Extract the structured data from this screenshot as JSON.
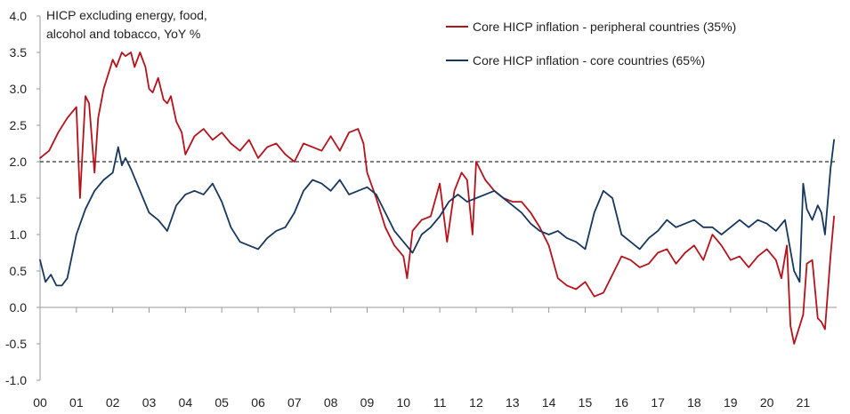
{
  "chart_data": {
    "type": "line",
    "annotation_lines": [
      "HICP excluding energy, food,",
      "alcohol and tobacco, YoY %"
    ],
    "xlabel": "",
    "ylabel": "",
    "ylim": [
      -1.0,
      4.0
    ],
    "yticks": [
      "4.0",
      "3.5",
      "3.0",
      "2.5",
      "2.0",
      "1.5",
      "1.0",
      "0.5",
      "0.0",
      "-0.5",
      "-1.0"
    ],
    "ytick_values": [
      4.0,
      3.5,
      3.0,
      2.5,
      2.0,
      1.5,
      1.0,
      0.5,
      0.0,
      -0.5,
      -1.0
    ],
    "xlim": [
      2000.0,
      2021.92
    ],
    "xticks": [
      "00",
      "01",
      "02",
      "03",
      "04",
      "05",
      "06",
      "07",
      "08",
      "09",
      "10",
      "11",
      "12",
      "13",
      "14",
      "15",
      "16",
      "17",
      "18",
      "19",
      "20",
      "21"
    ],
    "reference_line": {
      "y": 2.0,
      "style": "dashed",
      "color": "#000000"
    },
    "grid": false,
    "legend_position": "top-right",
    "series": [
      {
        "name": "Core HICP inflation - peripheral countries (35%)",
        "color": "#b5121b",
        "x": [
          2000.0,
          2000.25,
          2000.5,
          2000.75,
          2001.0,
          2001.1,
          2001.25,
          2001.35,
          2001.5,
          2001.6,
          2001.75,
          2002.0,
          2002.1,
          2002.25,
          2002.35,
          2002.5,
          2002.6,
          2002.75,
          2002.9,
          2003.0,
          2003.1,
          2003.25,
          2003.4,
          2003.5,
          2003.6,
          2003.75,
          2003.9,
          2004.0,
          2004.25,
          2004.5,
          2004.75,
          2005.0,
          2005.25,
          2005.5,
          2005.75,
          2006.0,
          2006.25,
          2006.5,
          2006.75,
          2007.0,
          2007.25,
          2007.5,
          2007.75,
          2008.0,
          2008.25,
          2008.5,
          2008.75,
          2008.9,
          2009.0,
          2009.25,
          2009.5,
          2009.75,
          2010.0,
          2010.1,
          2010.25,
          2010.5,
          2010.75,
          2011.0,
          2011.2,
          2011.4,
          2011.6,
          2011.75,
          2011.9,
          2012.0,
          2012.25,
          2012.5,
          2012.75,
          2013.0,
          2013.25,
          2013.5,
          2013.75,
          2014.0,
          2014.25,
          2014.5,
          2014.75,
          2015.0,
          2015.25,
          2015.5,
          2015.75,
          2016.0,
          2016.25,
          2016.5,
          2016.75,
          2017.0,
          2017.25,
          2017.5,
          2017.75,
          2018.0,
          2018.25,
          2018.5,
          2018.75,
          2019.0,
          2019.25,
          2019.5,
          2019.75,
          2020.0,
          2020.25,
          2020.4,
          2020.55,
          2020.65,
          2020.75,
          2021.0,
          2021.1,
          2021.25,
          2021.4,
          2021.5,
          2021.6,
          2021.75,
          2021.85
        ],
        "values": [
          2.05,
          2.15,
          2.4,
          2.6,
          2.75,
          1.5,
          2.9,
          2.8,
          1.85,
          2.6,
          3.0,
          3.4,
          3.3,
          3.5,
          3.45,
          3.5,
          3.3,
          3.5,
          3.3,
          3.0,
          2.95,
          3.15,
          2.85,
          2.8,
          2.9,
          2.55,
          2.4,
          2.1,
          2.35,
          2.45,
          2.3,
          2.4,
          2.25,
          2.15,
          2.3,
          2.05,
          2.2,
          2.25,
          2.1,
          2.0,
          2.25,
          2.2,
          2.15,
          2.35,
          2.15,
          2.4,
          2.45,
          2.25,
          1.85,
          1.5,
          1.1,
          0.85,
          0.7,
          0.4,
          1.05,
          1.2,
          1.25,
          1.7,
          0.9,
          1.6,
          1.85,
          1.75,
          1.0,
          2.0,
          1.75,
          1.6,
          1.5,
          1.45,
          1.45,
          1.3,
          1.1,
          0.85,
          0.4,
          0.3,
          0.25,
          0.35,
          0.15,
          0.2,
          0.45,
          0.7,
          0.65,
          0.55,
          0.6,
          0.75,
          0.8,
          0.6,
          0.75,
          0.85,
          0.65,
          1.0,
          0.85,
          0.65,
          0.7,
          0.55,
          0.7,
          0.8,
          0.65,
          0.4,
          0.85,
          -0.25,
          -0.5,
          -0.1,
          0.6,
          0.65,
          -0.15,
          -0.2,
          -0.3,
          0.7,
          1.25
        ]
      },
      {
        "name": "Core HICP inflation - core countries (65%)",
        "color": "#17375e",
        "x": [
          2000.0,
          2000.15,
          2000.3,
          2000.45,
          2000.6,
          2000.75,
          2001.0,
          2001.25,
          2001.5,
          2001.75,
          2002.0,
          2002.15,
          2002.25,
          2002.35,
          2002.5,
          2002.75,
          2003.0,
          2003.25,
          2003.5,
          2003.75,
          2004.0,
          2004.25,
          2004.5,
          2004.75,
          2005.0,
          2005.25,
          2005.5,
          2005.75,
          2006.0,
          2006.25,
          2006.5,
          2006.75,
          2007.0,
          2007.25,
          2007.5,
          2007.75,
          2008.0,
          2008.25,
          2008.5,
          2008.75,
          2009.0,
          2009.25,
          2009.5,
          2009.75,
          2010.0,
          2010.25,
          2010.5,
          2010.75,
          2011.0,
          2011.25,
          2011.5,
          2011.75,
          2012.0,
          2012.25,
          2012.5,
          2012.75,
          2013.0,
          2013.25,
          2013.5,
          2013.75,
          2014.0,
          2014.25,
          2014.5,
          2014.75,
          2015.0,
          2015.25,
          2015.5,
          2015.75,
          2016.0,
          2016.25,
          2016.5,
          2016.75,
          2017.0,
          2017.25,
          2017.5,
          2017.75,
          2018.0,
          2018.25,
          2018.5,
          2018.75,
          2019.0,
          2019.25,
          2019.5,
          2019.75,
          2020.0,
          2020.25,
          2020.5,
          2020.75,
          2020.9,
          2021.0,
          2021.1,
          2021.25,
          2021.4,
          2021.5,
          2021.6,
          2021.75,
          2021.85
        ],
        "values": [
          0.65,
          0.35,
          0.45,
          0.3,
          0.3,
          0.4,
          1.0,
          1.35,
          1.6,
          1.75,
          1.85,
          2.2,
          1.95,
          2.05,
          1.9,
          1.6,
          1.3,
          1.2,
          1.05,
          1.4,
          1.55,
          1.6,
          1.55,
          1.7,
          1.45,
          1.1,
          0.9,
          0.85,
          0.8,
          0.95,
          1.05,
          1.1,
          1.3,
          1.6,
          1.75,
          1.7,
          1.6,
          1.75,
          1.55,
          1.6,
          1.65,
          1.55,
          1.3,
          1.05,
          0.9,
          0.75,
          1.0,
          1.1,
          1.25,
          1.45,
          1.55,
          1.45,
          1.5,
          1.55,
          1.6,
          1.5,
          1.4,
          1.3,
          1.15,
          1.05,
          1.0,
          1.05,
          0.95,
          0.9,
          0.8,
          1.3,
          1.6,
          1.5,
          1.0,
          0.9,
          0.8,
          0.95,
          1.05,
          1.2,
          1.1,
          1.15,
          1.2,
          1.1,
          1.1,
          1.0,
          1.1,
          1.2,
          1.1,
          1.2,
          1.15,
          1.05,
          1.2,
          0.5,
          0.35,
          1.7,
          1.35,
          1.2,
          1.4,
          1.3,
          1.0,
          1.9,
          2.3
        ]
      }
    ]
  }
}
